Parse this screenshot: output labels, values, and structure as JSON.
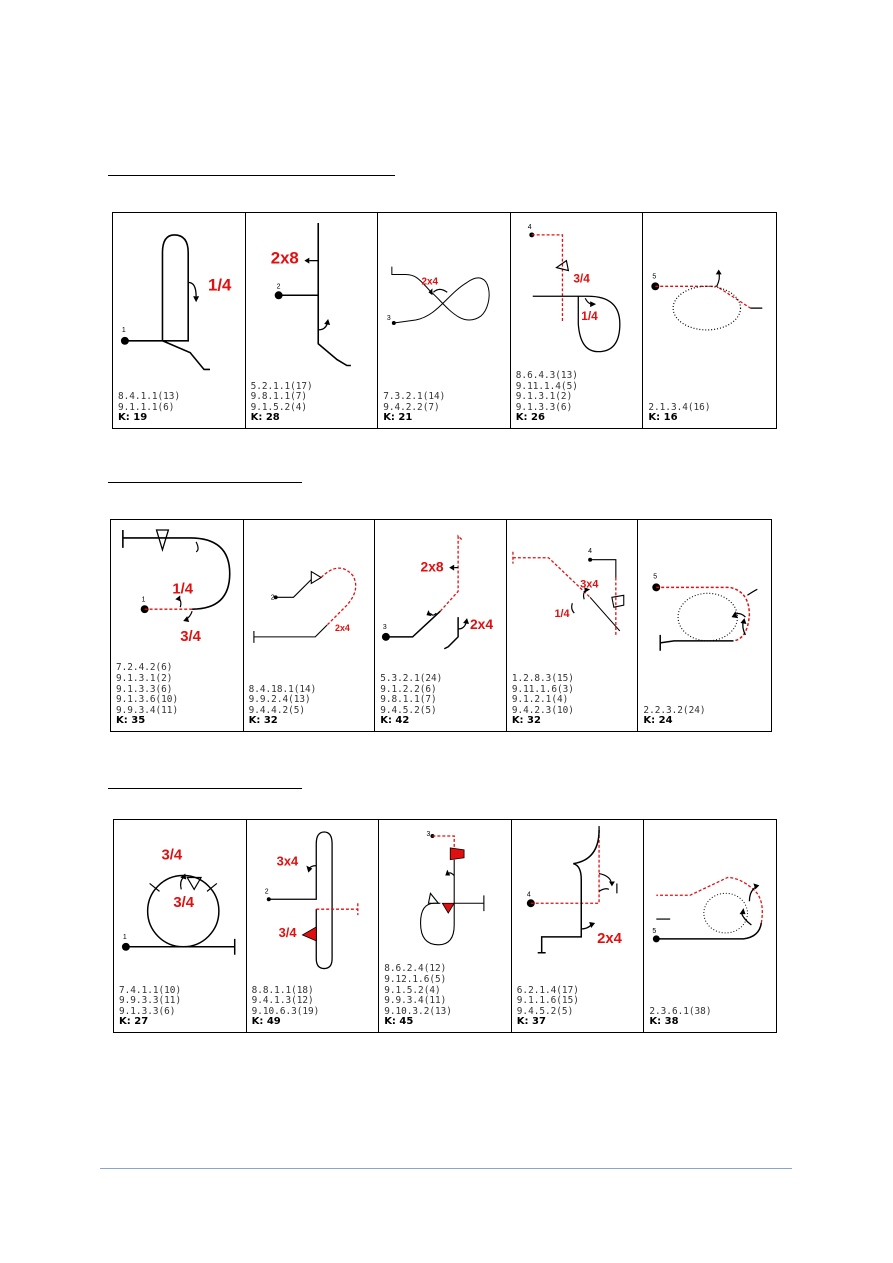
{
  "sections": [
    {
      "figures": [
        {
          "codes": [
            "8.4.1.1(13)",
            "9.1.1.1(6)"
          ],
          "k": "K: 19",
          "start_number": "1",
          "labels": [
            "1/4"
          ]
        },
        {
          "codes": [
            "5.2.1.1(17)",
            "9.8.1.1(7)",
            "9.1.5.2(4)"
          ],
          "k": "K: 28",
          "start_number": "2",
          "labels": [
            "2x8"
          ]
        },
        {
          "codes": [
            "7.3.2.1(14)",
            "9.4.2.2(7)"
          ],
          "k": "K: 21",
          "start_number": "3",
          "labels": [
            "2x4"
          ]
        },
        {
          "codes": [
            "8.6.4.3(13)",
            "9.11.1.4(5)",
            "9.1.3.1(2)",
            "9.1.3.3(6)"
          ],
          "k": "K: 26",
          "start_number": "4",
          "labels": [
            "3/4",
            "1/4"
          ]
        },
        {
          "codes": [
            "2.1.3.4(16)"
          ],
          "k": "K: 16",
          "start_number": "5",
          "labels": []
        }
      ]
    },
    {
      "figures": [
        {
          "codes": [
            "7.2.4.2(6)",
            "9.1.3.1(2)",
            "9.1.3.3(6)",
            "9.1.3.6(10)",
            "9.9.3.4(11)"
          ],
          "k": "K: 35",
          "start_number": "1",
          "labels": [
            "1/4",
            "3/4"
          ]
        },
        {
          "codes": [
            "8.4.18.1(14)",
            "9.9.2.4(13)",
            "9.4.4.2(5)"
          ],
          "k": "K: 32",
          "start_number": "2",
          "labels": [
            "2x4"
          ]
        },
        {
          "codes": [
            "5.3.2.1(24)",
            "9.1.2.2(6)",
            "9.8.1.1(7)",
            "9.4.5.2(5)"
          ],
          "k": "K: 42",
          "start_number": "3",
          "labels": [
            "2x8",
            "2x4"
          ]
        },
        {
          "codes": [
            "1.2.8.3(15)",
            "9.11.1.6(3)",
            "9.1.2.1(4)",
            "9.4.2.3(10)"
          ],
          "k": "K: 32",
          "start_number": "4",
          "labels": [
            "3x4",
            "1/4"
          ]
        },
        {
          "codes": [
            "2.2.3.2(24)"
          ],
          "k": "K: 24",
          "start_number": "5",
          "labels": []
        }
      ]
    },
    {
      "figures": [
        {
          "codes": [
            "7.4.1.1(10)",
            "9.9.3.3(11)",
            "9.1.3.3(6)"
          ],
          "k": "K: 27",
          "start_number": "1",
          "labels": [
            "3/4",
            "3/4"
          ]
        },
        {
          "codes": [
            "8.8.1.1(18)",
            "9.4.1.3(12)",
            "9.10.6.3(19)"
          ],
          "k": "K: 49",
          "start_number": "2",
          "labels": [
            "3x4",
            "3/4"
          ]
        },
        {
          "codes": [
            "8.6.2.4(12)",
            "9.12.1.6(5)",
            "9.1.5.2(4)",
            "9.9.3.4(11)",
            "9.10.3.2(13)"
          ],
          "k": "K: 45",
          "start_number": "3",
          "labels": []
        },
        {
          "codes": [
            "6.2.1.4(17)",
            "9.1.1.6(15)",
            "9.4.5.2(5)"
          ],
          "k": "K: 37",
          "start_number": "4",
          "labels": [
            "2x4"
          ]
        },
        {
          "codes": [
            "2.3.6.1(38)"
          ],
          "k": "K: 38",
          "start_number": "5",
          "labels": []
        }
      ]
    }
  ],
  "colors": {
    "line": "#000000",
    "accent": "#e01010",
    "footer_rule": "#8aa4cf"
  }
}
